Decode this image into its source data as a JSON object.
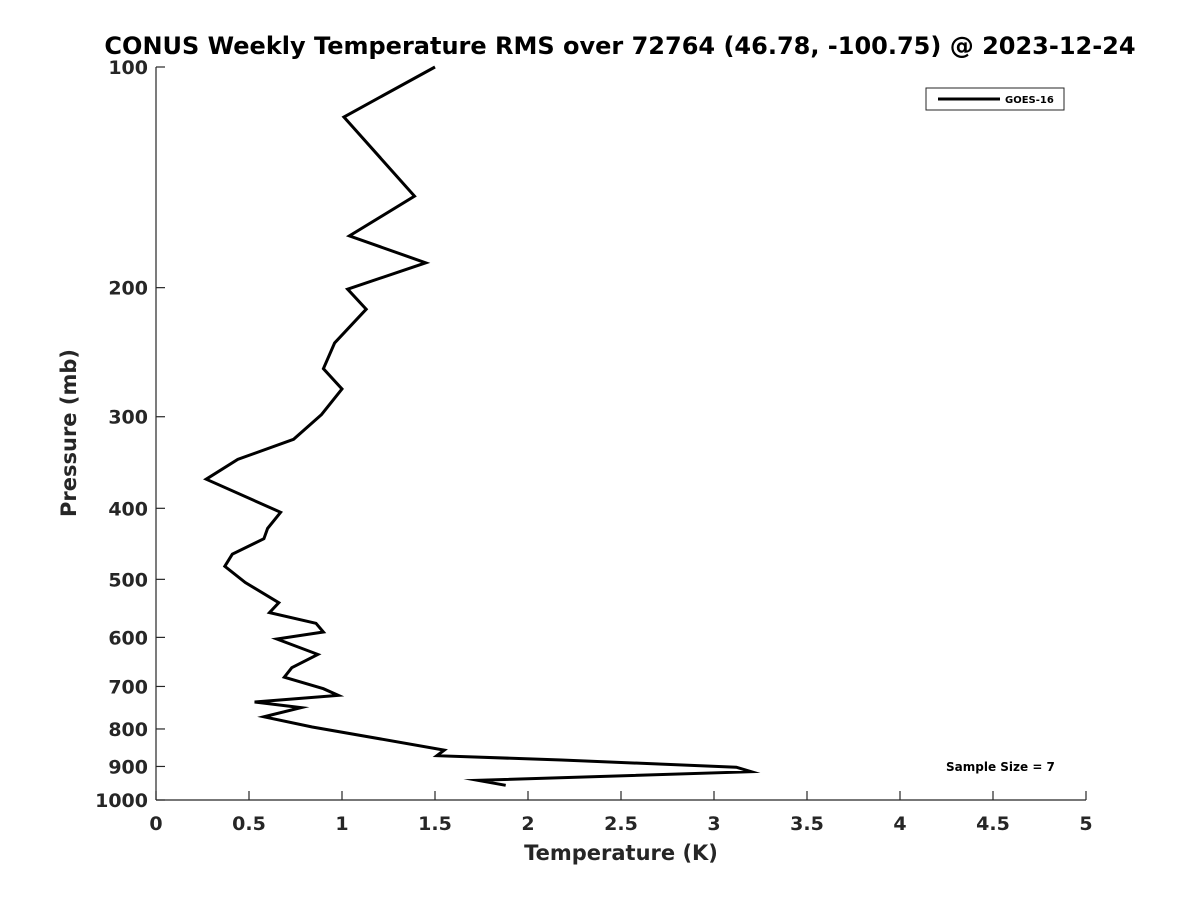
{
  "chart_data": {
    "type": "line",
    "title": "CONUS Weekly Temperature RMS over 72764 (46.78, -100.75) @ 2023-12-24",
    "xlabel": "Temperature (K)",
    "ylabel": "Pressure (mb)",
    "xlim": [
      0,
      5
    ],
    "ylim": [
      1000,
      100
    ],
    "yscale": "log",
    "y_reversed": true,
    "grid": false,
    "legend_position": "top-right",
    "xticks": [
      0,
      0.5,
      1,
      1.5,
      2,
      2.5,
      3,
      3.5,
      4,
      4.5,
      5
    ],
    "xtick_labels": [
      "0",
      "0.5",
      "1",
      "1.5",
      "2",
      "2.5",
      "3",
      "3.5",
      "4",
      "4.5",
      "5"
    ],
    "yticks": [
      100,
      200,
      300,
      400,
      500,
      600,
      700,
      800,
      900,
      1000
    ],
    "ytick_labels": [
      "100",
      "200",
      "300",
      "400",
      "500",
      "600",
      "700",
      "800",
      "900",
      "1000"
    ],
    "series": [
      {
        "name": "GOES-16",
        "color": "#000000",
        "x": [
          1.5,
          1.01,
          1.39,
          1.04,
          1.45,
          1.03,
          1.13,
          0.96,
          0.9,
          1.0,
          0.89,
          0.74,
          0.44,
          0.27,
          0.67,
          0.6,
          0.58,
          0.41,
          0.37,
          0.48,
          0.66,
          0.61,
          0.86,
          0.9,
          0.65,
          0.87,
          0.73,
          0.69,
          0.9,
          0.98,
          0.53,
          0.78,
          0.58,
          0.84,
          1.55,
          1.51,
          2.18,
          3.12,
          3.2,
          1.73,
          1.88
        ],
        "y": [
          100,
          117,
          150,
          170,
          185,
          201,
          214,
          238,
          258,
          275,
          298,
          322,
          343,
          365,
          405,
          426,
          440,
          462,
          480,
          505,
          538,
          555,
          574,
          590,
          603,
          633,
          660,
          680,
          705,
          720,
          735,
          748,
          770,
          795,
          855,
          870,
          882,
          902,
          915,
          940,
          955
        ]
      }
    ],
    "annotations": [
      "Sample Size = 7"
    ]
  }
}
